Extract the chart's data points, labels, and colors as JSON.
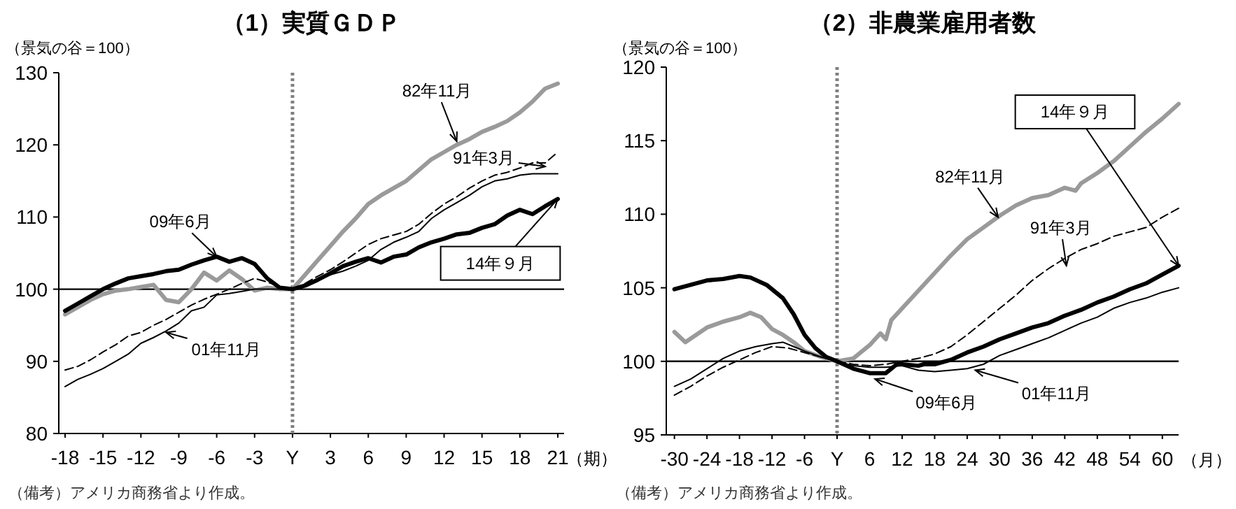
{
  "chart_data": [
    {
      "type": "line",
      "title": "（1）実質ＧＤＰ",
      "ylabel": "（景気の谷＝100）",
      "xlabel": "（期）",
      "xlim": [
        -18.5,
        21.5
      ],
      "ylim": [
        80,
        130
      ],
      "xticks": [
        -18,
        -15,
        -12,
        -9,
        -6,
        -3,
        {
          "value": 0,
          "label": "Y"
        },
        3,
        6,
        9,
        12,
        15,
        18,
        21
      ],
      "yticks": [
        80,
        90,
        100,
        110,
        120,
        130
      ],
      "grid": false,
      "ref_lines": [
        {
          "axis": "y",
          "value": 100,
          "color": "#000000",
          "line_style": "solid"
        },
        {
          "axis": "x",
          "value": 0,
          "color": "#808080",
          "line_style": "dotted"
        }
      ],
      "x": [
        -18,
        -17,
        -16,
        -15,
        -14,
        -13,
        -12,
        -11,
        -10,
        -9,
        -8,
        -7,
        -6,
        -5,
        -4,
        -3,
        -2,
        -1,
        0,
        1,
        2,
        3,
        4,
        5,
        6,
        7,
        8,
        9,
        10,
        11,
        12,
        13,
        14,
        15,
        16,
        17,
        18,
        19,
        20,
        21
      ],
      "series": [
        {
          "color": "#9a9a9a",
          "line_style": "solid",
          "values": [
            96.5,
            97.5,
            98.5,
            99.3,
            99.8,
            100,
            100.3,
            100.6,
            98.5,
            98.2,
            100,
            102.3,
            101.2,
            102.6,
            101.4,
            99.8,
            100.2,
            100,
            100,
            102,
            104,
            106,
            108,
            109.8,
            111.8,
            113,
            114,
            115,
            116.5,
            118,
            119,
            120,
            120.8,
            121.8,
            122.5,
            123.3,
            124.5,
            126,
            127.8,
            128.5
          ]
        },
        {
          "color": "#000000",
          "line_style": "dashed",
          "values": [
            88.8,
            89.3,
            90.2,
            91.3,
            92.3,
            93.5,
            94,
            95,
            95.8,
            96.8,
            97.8,
            98.6,
            99.3,
            100,
            100.8,
            101.5,
            101,
            100.3,
            100,
            100.8,
            101.8,
            102.7,
            103.8,
            105,
            106.2,
            107,
            107.5,
            108,
            109,
            110.5,
            111.8,
            112.8,
            114,
            115,
            115.8,
            116.2,
            116.8,
            117.5,
            117.5,
            119
          ]
        },
        {
          "color": "#000000",
          "line_style": "solid",
          "values": [
            86.5,
            87.5,
            88.2,
            89,
            90,
            91,
            92.5,
            93.3,
            94.2,
            95.3,
            97,
            97.5,
            99.2,
            99.4,
            99.7,
            100,
            100,
            100,
            100,
            100.6,
            101.4,
            102,
            102.5,
            103.2,
            104,
            105.5,
            106.5,
            107.2,
            108,
            109.8,
            111,
            112,
            113,
            114.2,
            115,
            115.3,
            115.8,
            116,
            116,
            116
          ]
        },
        {
          "color": "#000000",
          "line_style": "solid",
          "values": [
            97,
            98,
            99,
            100,
            100.8,
            101.5,
            101.8,
            102.1,
            102.5,
            102.7,
            103.4,
            104,
            104.5,
            103.8,
            104.3,
            103.5,
            101.5,
            100.2,
            100,
            100.5,
            101.3,
            102.2,
            103.2,
            103.8,
            104.3,
            103.7,
            104.5,
            104.8,
            105.8,
            106.5,
            107,
            107.6,
            107.8,
            108.5,
            109,
            110.2,
            111,
            110.4,
            111.5,
            112.5
          ]
        }
      ],
      "annotations": [
        {
          "text": "82年11月",
          "x": 13,
          "y": 120.5
        },
        {
          "text": "91年3月",
          "x": 20,
          "y": 117
        },
        {
          "text": "09年6月",
          "x": -6,
          "y": 104.5
        },
        {
          "text": "01年11月",
          "x": -10,
          "y": 94
        },
        {
          "text": "14年９月",
          "x": 21,
          "y": 112.5
        },
        "（備考）アメリカ商務省より作成。"
      ]
    },
    {
      "type": "line",
      "title": "（2）非農業雇用者数",
      "ylabel": "（景気の谷＝100）",
      "xlabel": "（月）",
      "xlim": [
        -31.5,
        63
      ],
      "ylim": [
        95,
        120
      ],
      "xticks": [
        -30,
        -24,
        -18,
        -12,
        -6,
        {
          "value": 0,
          "label": "Y"
        },
        6,
        12,
        18,
        24,
        30,
        36,
        42,
        48,
        54,
        60
      ],
      "yticks": [
        95,
        100,
        105,
        110,
        115,
        120
      ],
      "grid": false,
      "ref_lines": [
        {
          "axis": "y",
          "value": 100,
          "color": "#000000",
          "line_style": "solid"
        },
        {
          "axis": "x",
          "value": 0,
          "color": "#808080",
          "line_style": "dotted"
        }
      ],
      "series": [
        {
          "color": "#9a9a9a",
          "line_style": "solid",
          "x": [
            -30,
            -28,
            -26,
            -24,
            -21,
            -18,
            -16,
            -14,
            -12,
            -10,
            -8,
            -6,
            -3,
            0,
            3,
            6,
            8,
            9,
            10,
            12,
            15,
            18,
            21,
            24,
            27,
            30,
            33,
            36,
            39,
            42,
            44,
            45,
            48,
            51,
            54,
            57,
            60,
            63
          ],
          "values": [
            102,
            101.3,
            101.8,
            102.3,
            102.7,
            103,
            103.3,
            103,
            102.2,
            101.8,
            101.3,
            100.7,
            100.3,
            100,
            100.2,
            101.1,
            101.9,
            101.5,
            102.8,
            103.6,
            104.8,
            106,
            107.2,
            108.3,
            109.1,
            109.9,
            110.6,
            111.1,
            111.3,
            111.8,
            111.6,
            112.1,
            112.8,
            113.6,
            114.6,
            115.6,
            116.5,
            117.5
          ]
        },
        {
          "color": "#000000",
          "line_style": "dashed",
          "x": [
            -30,
            -27,
            -24,
            -21,
            -18,
            -15,
            -12,
            -9,
            -6,
            -3,
            0,
            3,
            6,
            9,
            12,
            15,
            18,
            21,
            24,
            27,
            30,
            33,
            36,
            39,
            42,
            45,
            48,
            51,
            54,
            57,
            60,
            63
          ],
          "values": [
            97.7,
            98.3,
            99,
            99.6,
            100.1,
            100.6,
            101,
            100.9,
            100.6,
            100.3,
            100,
            99.8,
            99.7,
            99.8,
            100,
            100.2,
            100.5,
            101,
            101.8,
            102.7,
            103.6,
            104.5,
            105.5,
            106.3,
            107,
            107.6,
            108,
            108.5,
            108.8,
            109.1,
            109.8,
            110.4
          ]
        },
        {
          "color": "#000000",
          "line_style": "solid",
          "x": [
            -30,
            -27,
            -24,
            -21,
            -18,
            -15,
            -12,
            -10,
            -8,
            -6,
            -3,
            0,
            3,
            6,
            9,
            12,
            15,
            18,
            21,
            24,
            27,
            30,
            33,
            36,
            39,
            42,
            45,
            48,
            51,
            54,
            57,
            60,
            63
          ],
          "values": [
            98.3,
            98.8,
            99.5,
            100.2,
            100.7,
            101,
            101.2,
            101.3,
            101,
            100.7,
            100.3,
            100,
            99.7,
            99.6,
            99.6,
            99.7,
            99.4,
            99.3,
            99.4,
            99.5,
            99.8,
            100.4,
            100.8,
            101.2,
            101.6,
            102.1,
            102.6,
            103,
            103.6,
            104,
            104.3,
            104.7,
            105
          ]
        },
        {
          "color": "#000000",
          "line_style": "solid",
          "x": [
            -30,
            -27,
            -24,
            -21,
            -18,
            -16,
            -13,
            -10,
            -8,
            -6,
            -4,
            -2,
            0,
            3,
            6,
            9,
            10,
            11,
            12,
            15,
            16,
            18,
            21,
            24,
            27,
            30,
            33,
            36,
            39,
            42,
            45,
            48,
            51,
            54,
            57,
            60,
            63
          ],
          "values": [
            104.9,
            105.2,
            105.5,
            105.6,
            105.8,
            105.7,
            105.2,
            104.3,
            103.2,
            101.8,
            100.9,
            100.3,
            100,
            99.5,
            99.2,
            99.2,
            99.5,
            99.8,
            99.8,
            99.7,
            99.8,
            99.8,
            100.1,
            100.6,
            101,
            101.5,
            101.9,
            102.3,
            102.6,
            103.1,
            103.5,
            104,
            104.4,
            104.9,
            105.3,
            105.9,
            106.5
          ]
        }
      ],
      "annotations": [
        {
          "text": "82年11月",
          "x": 29.7,
          "y": 109.8
        },
        {
          "text": "91年3月",
          "x": 42.3,
          "y": 106.5
        },
        {
          "text": "14年９月",
          "x": 63,
          "y": 106.5
        },
        {
          "text": "09年6月",
          "x": 7,
          "y": 98.8
        },
        {
          "text": "01年11月",
          "x": 25.5,
          "y": 99.4
        },
        "（備考）アメリカ商務省より作成。"
      ]
    }
  ]
}
